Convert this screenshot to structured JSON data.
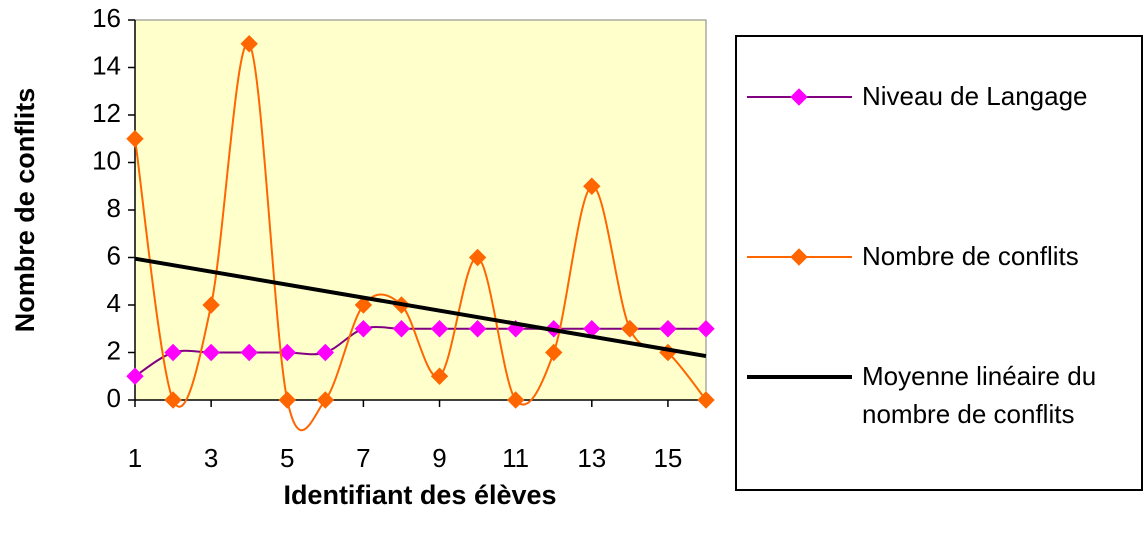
{
  "chart_data": {
    "type": "line",
    "xlabel": "Identifiant des élèves",
    "ylabel": "Nombre de conflits",
    "x": [
      1,
      2,
      3,
      4,
      5,
      6,
      7,
      8,
      9,
      10,
      11,
      12,
      13,
      14,
      15,
      16
    ],
    "series": [
      {
        "name": "Niveau de Langage",
        "color": "#800080",
        "marker_color": "#ff00ff",
        "marker": "diamond",
        "smooth": true,
        "values": [
          1,
          2,
          2,
          2,
          2,
          2,
          3,
          3,
          3,
          3,
          3,
          3,
          3,
          3,
          3,
          3
        ]
      },
      {
        "name": "Nombre de conflits",
        "color": "#ff6600",
        "marker_color": "#ff6600",
        "marker": "diamond",
        "smooth": true,
        "values": [
          11,
          0,
          4,
          15,
          0,
          0,
          4,
          4,
          1,
          6,
          0,
          2,
          9,
          3,
          2,
          0
        ]
      },
      {
        "name": "Moyenne linéaire du nombre de conflits",
        "color": "#000000",
        "smooth": false,
        "x": [
          1,
          16
        ],
        "values": [
          5.95,
          1.85
        ]
      }
    ],
    "xlim": [
      1,
      16
    ],
    "xticks": [
      1,
      3,
      5,
      7,
      9,
      11,
      13,
      15
    ],
    "ylim": [
      0,
      16
    ],
    "yticks": [
      0,
      2,
      4,
      6,
      8,
      10,
      12,
      14,
      16
    ],
    "plot_background": "#ffffcc"
  }
}
